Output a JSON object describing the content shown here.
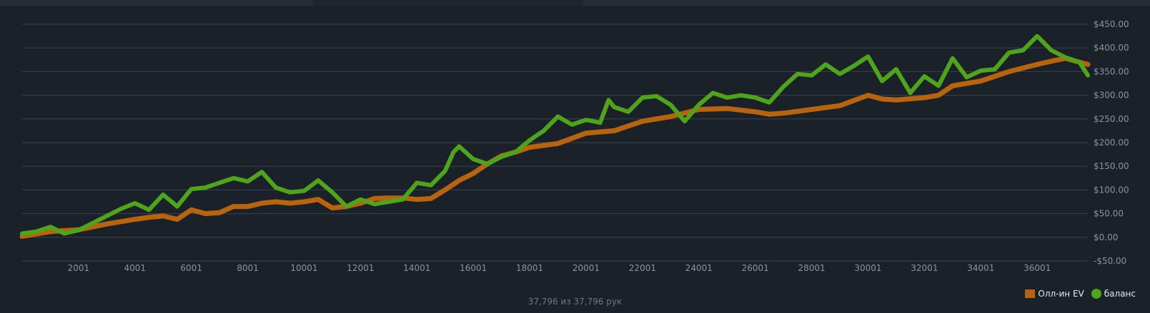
{
  "colors": {
    "background": "#1b2129",
    "grid": "#3a4350",
    "axis_text": "#8a939f",
    "allin_ev": "#b8640f",
    "balance": "#4ea41a"
  },
  "footer": {
    "hands_count": "37,796 из 37,796 рук"
  },
  "legend": {
    "allin_ev_label": "Олл-ин EV",
    "balance_label": "баланс"
  },
  "chart_data": {
    "type": "line",
    "title": "",
    "xlabel": "",
    "ylabel": "",
    "xlim": [
      1,
      37796
    ],
    "ylim": [
      -50,
      450
    ],
    "x_ticks": [
      2001,
      4001,
      6001,
      8001,
      10001,
      12001,
      14001,
      16001,
      18001,
      20001,
      22001,
      24001,
      26001,
      28001,
      30001,
      32001,
      34001,
      36001
    ],
    "y_ticks": [
      -50,
      0,
      50,
      100,
      150,
      200,
      250,
      300,
      350,
      400,
      450
    ],
    "y_tick_labels": [
      "-$50.00",
      "$0.00",
      "$50.00",
      "$100.00",
      "$150.00",
      "$200.00",
      "$250.00",
      "$300.00",
      "$350.00",
      "$400.00",
      "$450.00"
    ],
    "legend_position": "bottom-right",
    "grid": true,
    "series": [
      {
        "name": "Олл-ин EV",
        "color": "#b8640f",
        "x": [
          0,
          1000,
          2000,
          3000,
          4000,
          4500,
          5000,
          5500,
          6000,
          6500,
          7000,
          7500,
          8000,
          8500,
          9000,
          9500,
          10000,
          10500,
          11000,
          11500,
          12000,
          12500,
          13000,
          13500,
          14000,
          14500,
          15000,
          15500,
          16000,
          16500,
          17000,
          17500,
          18000,
          19000,
          20000,
          21000,
          22000,
          23000,
          24000,
          25000,
          26000,
          26500,
          27000,
          28000,
          29000,
          30000,
          30500,
          31000,
          32000,
          32500,
          33000,
          34000,
          35000,
          36000,
          36500,
          37000,
          37796
        ],
        "values": [
          2,
          12,
          16,
          28,
          38,
          42,
          45,
          38,
          58,
          50,
          52,
          65,
          65,
          72,
          75,
          72,
          75,
          80,
          62,
          65,
          72,
          82,
          83,
          83,
          80,
          82,
          100,
          120,
          135,
          155,
          172,
          180,
          190,
          198,
          220,
          225,
          245,
          255,
          270,
          272,
          265,
          260,
          262,
          270,
          278,
          300,
          292,
          290,
          295,
          300,
          320,
          330,
          350,
          365,
          372,
          378,
          365
        ]
      },
      {
        "name": "баланс",
        "color": "#4ea41a",
        "x": [
          0,
          500,
          1000,
          1500,
          2000,
          2500,
          3000,
          3500,
          4000,
          4500,
          5000,
          5500,
          6000,
          6500,
          7000,
          7500,
          8000,
          8500,
          9000,
          9500,
          10000,
          10500,
          11000,
          11500,
          12000,
          12500,
          13000,
          13500,
          14000,
          14500,
          15000,
          15300,
          15500,
          16000,
          16500,
          17000,
          17500,
          18000,
          18500,
          19000,
          19500,
          20000,
          20500,
          20800,
          21000,
          21500,
          22000,
          22500,
          23000,
          23500,
          24000,
          24500,
          25000,
          25500,
          26000,
          26500,
          27000,
          27500,
          28000,
          28500,
          29000,
          29500,
          30000,
          30500,
          31000,
          31500,
          32000,
          32500,
          33000,
          33500,
          34000,
          34500,
          35000,
          35500,
          36000,
          36500,
          37000,
          37500,
          37796
        ],
        "values": [
          8,
          12,
          22,
          8,
          15,
          30,
          45,
          60,
          72,
          58,
          90,
          65,
          102,
          105,
          115,
          125,
          118,
          138,
          105,
          95,
          98,
          120,
          95,
          65,
          80,
          70,
          75,
          80,
          115,
          110,
          140,
          180,
          192,
          165,
          155,
          170,
          180,
          205,
          225,
          255,
          238,
          248,
          242,
          290,
          275,
          265,
          295,
          298,
          280,
          245,
          280,
          305,
          295,
          300,
          295,
          285,
          318,
          345,
          342,
          365,
          345,
          362,
          382,
          330,
          355,
          305,
          340,
          320,
          378,
          338,
          352,
          355,
          390,
          395,
          425,
          395,
          380,
          370,
          342
        ]
      }
    ]
  }
}
